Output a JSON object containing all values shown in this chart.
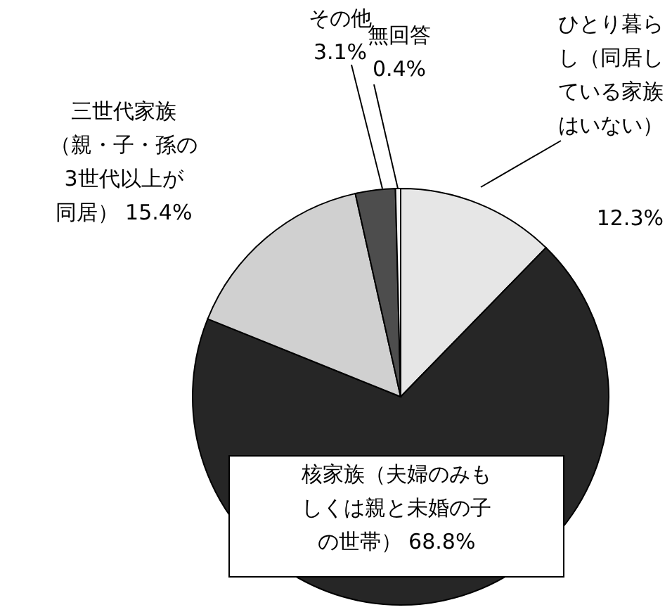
{
  "chart_data": {
    "type": "pie",
    "categories": [
      "ひとり暮らし（同居している家族はいない）",
      "核家族（夫婦のみもしくは親と未婚の子の世帯）",
      "三世代家族（親・子・孫の3世代以上が同居）",
      "その他",
      "無回答"
    ],
    "values": [
      12.3,
      68.8,
      15.4,
      3.1,
      0.4
    ],
    "value_labels": [
      "12.3%",
      "68.8%",
      "15.4%",
      "3.1%",
      "0.4%"
    ],
    "colors": [
      "#e6e6e6",
      "#262626",
      "#d0d0d0",
      "#4d4d4d",
      "#f5f5f5"
    ]
  }
}
